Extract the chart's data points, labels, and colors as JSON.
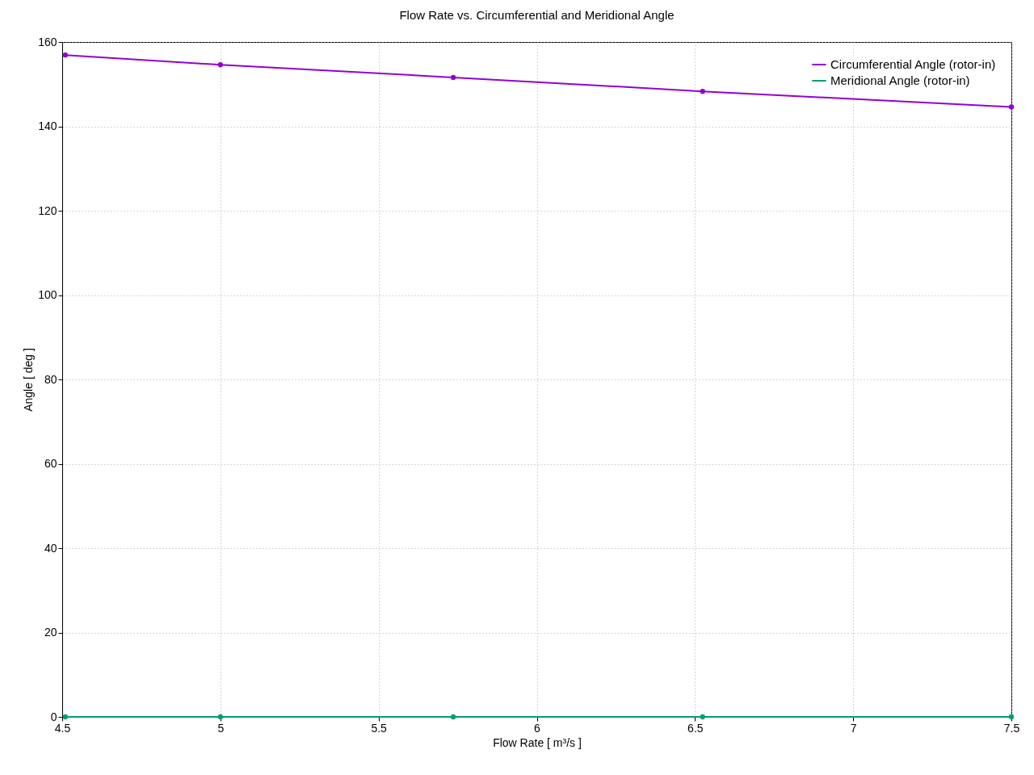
{
  "chart_data": {
    "type": "line",
    "title": "Flow Rate vs. Circumferential and Meridional Angle",
    "xlabel": "Flow Rate [ m³/s ]",
    "ylabel": "Angle [ deg ]",
    "x": [
      4.51,
      5.0,
      5.736,
      6.524,
      7.5
    ],
    "series": [
      {
        "name": "Circumferential Angle (rotor-in)",
        "color": "#9400d3",
        "values": [
          156.9,
          154.6,
          151.6,
          148.3,
          144.6
        ]
      },
      {
        "name": "Meridional Angle (rotor-in)",
        "color": "#009e73",
        "values": [
          0,
          0,
          0,
          0,
          0
        ]
      }
    ],
    "xlim": [
      4.5,
      7.5
    ],
    "xticks": [
      4.5,
      5,
      5.5,
      6,
      6.5,
      7,
      7.5
    ],
    "ylim": [
      0,
      160
    ],
    "yticks": [
      0,
      20,
      40,
      60,
      80,
      100,
      120,
      140,
      160
    ],
    "grid": true,
    "legend": "top right",
    "marker": "circle",
    "line_style": "solid"
  }
}
